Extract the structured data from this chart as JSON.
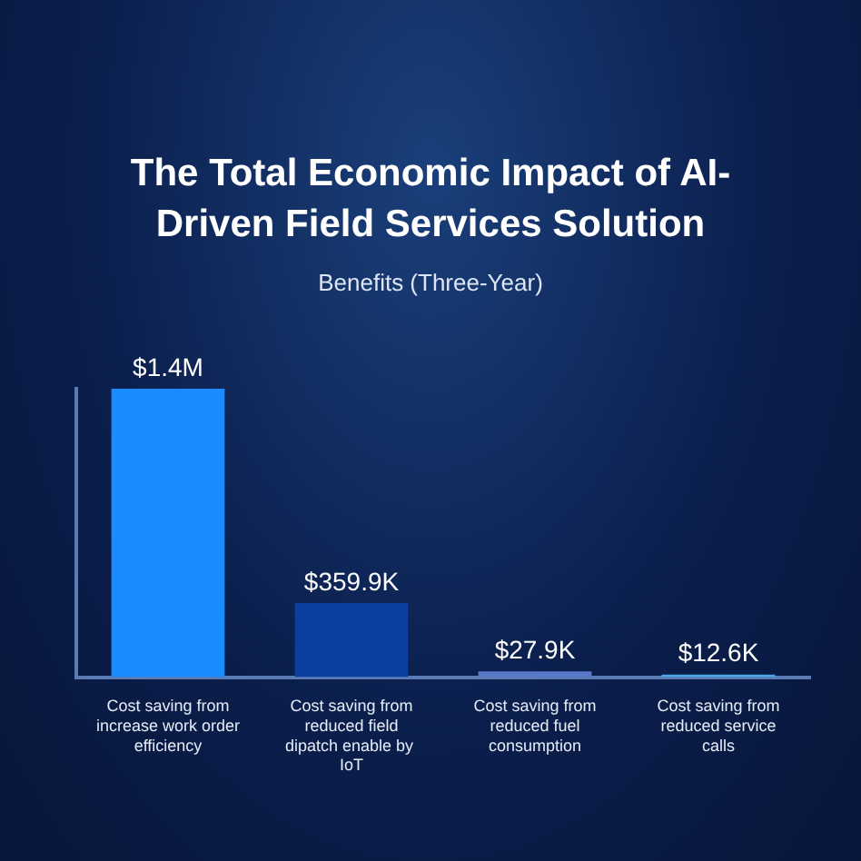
{
  "chart_data": {
    "type": "bar",
    "title": "The Total Economic Impact of AI-Driven Field Services Solution",
    "subtitle": "Benefits (Three-Year)",
    "categories": [
      "Cost saving from increase work order efficiency",
      "Cost saving from reduced field dipatch enable by  IoT",
      "Cost saving from reduced fuel consumption",
      "Cost saving from reduced service calls"
    ],
    "values": [
      1400000,
      359900,
      27900,
      12600
    ],
    "colors": [
      "#1a8cff",
      "#0a3fa0",
      "#5a78c8",
      "#4aa8e8"
    ],
    "value_labels": [
      "$1.4M",
      "$359.9K",
      "$27.9K",
      "$12.6K"
    ],
    "grid": false,
    "legend": false
  }
}
